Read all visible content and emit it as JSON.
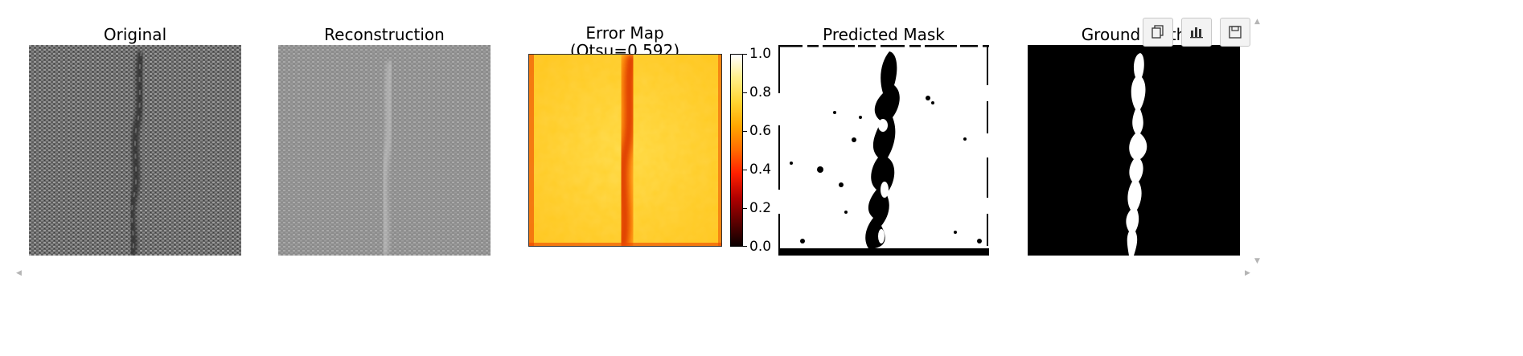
{
  "panels": {
    "original": {
      "title": "Original"
    },
    "reconstruction": {
      "title": "Reconstruction"
    },
    "error_map": {
      "title_line1": "Error Map",
      "title_line2": "(Otsu=0.592)"
    },
    "predicted_mask": {
      "title": "Predicted Mask"
    },
    "ground_truth": {
      "title": "Ground Truth"
    }
  },
  "colorbar": {
    "ticks": [
      "1.0",
      "0.8",
      "0.6",
      "0.4",
      "0.2",
      "0.0"
    ],
    "colormap": "hot",
    "range": [
      0.0,
      1.0
    ]
  },
  "toolbar": {
    "buttons": [
      {
        "name": "copy-button",
        "icon": "copy-icon"
      },
      {
        "name": "chart-button",
        "icon": "bar-chart-icon"
      },
      {
        "name": "save-button",
        "icon": "save-icon"
      }
    ]
  },
  "colors": {
    "background": "#ffffff",
    "fabric_dark": "#4a4a4a",
    "fabric_light": "#9a9a9a",
    "error_low": "#ffd84a",
    "error_high": "#d02000",
    "mask_white": "#ffffff",
    "mask_black": "#000000"
  }
}
